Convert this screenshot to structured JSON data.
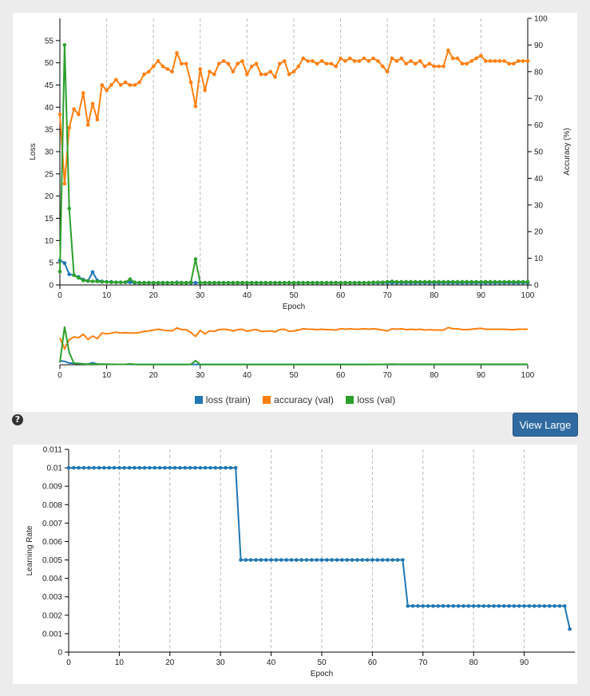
{
  "view_large_label": "View Large",
  "help_icon_glyph": "?",
  "colors": {
    "train_loss": "#1f77b4",
    "val_accuracy": "#ff7f0e",
    "val_loss": "#2ca02c",
    "lr": "#1f77b4",
    "grid": "#bbbbbb"
  },
  "chart_data": [
    {
      "type": "line",
      "xlabel": "Epoch",
      "ylabel": "Loss",
      "y2label": "Accuracy (%)",
      "xlim": [
        0,
        100
      ],
      "ylim": [
        0,
        60
      ],
      "y2lim": [
        0,
        100
      ],
      "x_ticks": [
        0,
        10,
        20,
        30,
        40,
        50,
        60,
        70,
        80,
        90,
        100
      ],
      "y_ticks": [
        0,
        5,
        10,
        15,
        20,
        25,
        30,
        35,
        40,
        45,
        50,
        55
      ],
      "y2_ticks": [
        0,
        10,
        20,
        30,
        40,
        50,
        60,
        70,
        80,
        90,
        100
      ],
      "grid": "vertical dashed",
      "legend_position": "bottom",
      "series": [
        {
          "name": "loss (train)",
          "axis": "left",
          "values": [
            5.5,
            4.9,
            2.4,
            2.2,
            1.8,
            1.2,
            0.9,
            2.9,
            1.0,
            0.8,
            0.7,
            0.7,
            0.6,
            0.6,
            0.6,
            0.6,
            0.5,
            0.5,
            0.5,
            0.5,
            0.5,
            0.5,
            0.5,
            0.5,
            0.5,
            0.6,
            0.5,
            0.5,
            0.5,
            0.5,
            0.5,
            0.5,
            0.5,
            0.5,
            0.5,
            0.5,
            0.5,
            0.5,
            0.5,
            0.5,
            0.5,
            0.5,
            0.5,
            0.5,
            0.5,
            0.5,
            0.5,
            0.5,
            0.5,
            0.5,
            0.5,
            0.5,
            0.5,
            0.5,
            0.5,
            0.5,
            0.5,
            0.5,
            0.5,
            0.5,
            0.5,
            0.5,
            0.5,
            0.5,
            0.5,
            0.5,
            0.5,
            0.5,
            0.5,
            0.5,
            0.5,
            0.5,
            0.5,
            0.5,
            0.5,
            0.5,
            0.5,
            0.5,
            0.5,
            0.5,
            0.5,
            0.5,
            0.5,
            0.5,
            0.5,
            0.5,
            0.5,
            0.5,
            0.5,
            0.5,
            0.5,
            0.5,
            0.5,
            0.5,
            0.5,
            0.5,
            0.5,
            0.5,
            0.5,
            0.5,
            0.5
          ]
        },
        {
          "name": "accuracy (val)",
          "axis": "right",
          "values": [
            64,
            38,
            59,
            66,
            64,
            72,
            60,
            68,
            62,
            75,
            73,
            75,
            77,
            75,
            76,
            75,
            75,
            76,
            79,
            80,
            82,
            84,
            82,
            81,
            80,
            87,
            83,
            83,
            76,
            67,
            81,
            73,
            80,
            79,
            83,
            84,
            83,
            80,
            83,
            84,
            79,
            82,
            83,
            79,
            79,
            80,
            78,
            83,
            84,
            79,
            80,
            82,
            85,
            84,
            84,
            83,
            84,
            83,
            83,
            82,
            85,
            84,
            85,
            84,
            84,
            85,
            84,
            85,
            84,
            82,
            80,
            85,
            84,
            85,
            83,
            84,
            83,
            84,
            82,
            83,
            82,
            82,
            82,
            88,
            85,
            85,
            83,
            83,
            84,
            85,
            86,
            84,
            84,
            84,
            84,
            84,
            83,
            83,
            84,
            84,
            84
          ]
        },
        {
          "name": "loss (val)",
          "axis": "left",
          "values": [
            3.0,
            54.0,
            17.2,
            2.2,
            1.6,
            1.0,
            0.9,
            0.8,
            0.8,
            0.7,
            0.7,
            0.6,
            0.6,
            0.6,
            0.6,
            1.3,
            0.6,
            0.5,
            0.5,
            0.5,
            0.5,
            0.5,
            0.5,
            0.5,
            0.5,
            0.5,
            0.5,
            0.5,
            0.6,
            5.8,
            0.5,
            0.5,
            0.5,
            0.5,
            0.5,
            0.5,
            0.5,
            0.5,
            0.5,
            0.5,
            0.5,
            0.5,
            0.5,
            0.5,
            0.5,
            0.5,
            0.5,
            0.5,
            0.5,
            0.5,
            0.5,
            0.5,
            0.5,
            0.5,
            0.5,
            0.5,
            0.5,
            0.5,
            0.5,
            0.5,
            0.5,
            0.5,
            0.5,
            0.5,
            0.5,
            0.5,
            0.5,
            0.6,
            0.6,
            0.6,
            0.7,
            0.8,
            0.7,
            0.7,
            0.7,
            0.7,
            0.7,
            0.7,
            0.7,
            0.7,
            0.7,
            0.7,
            0.7,
            0.7,
            0.7,
            0.7,
            0.7,
            0.7,
            0.7,
            0.7,
            0.7,
            0.7,
            0.7,
            0.7,
            0.7,
            0.7,
            0.7,
            0.7,
            0.7,
            0.7,
            0.7
          ]
        }
      ]
    },
    {
      "type": "line",
      "xlabel": "Epoch",
      "ylabel": "Learning Rate",
      "xlim": [
        0,
        100
      ],
      "ylim": [
        0,
        0.011
      ],
      "x_ticks": [
        0,
        10,
        20,
        30,
        40,
        50,
        60,
        70,
        80,
        90
      ],
      "y_ticks": [
        "0",
        "0.001",
        "0.002",
        "0.003",
        "0.004",
        "0.005",
        "0.006",
        "0.007",
        "0.008",
        "0.009",
        "0.01",
        "0.011"
      ],
      "grid": "vertical dashed",
      "series": [
        {
          "name": "",
          "segments": [
            {
              "from": 0,
              "to": 33,
              "value": 0.01
            },
            {
              "from": 34,
              "to": 66,
              "value": 0.005
            },
            {
              "from": 67,
              "to": 98,
              "value": 0.0025
            },
            {
              "from": 99,
              "to": 99,
              "value": 0.00125
            }
          ]
        }
      ]
    }
  ]
}
